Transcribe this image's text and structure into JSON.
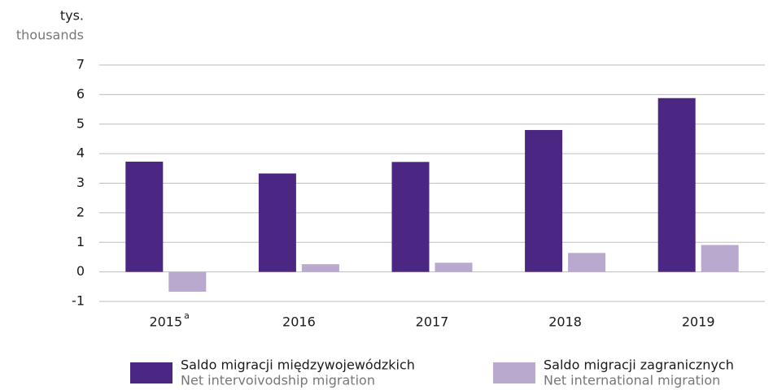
{
  "chart_data": {
    "type": "bar",
    "ylabel": [
      "tys.",
      "thousands"
    ],
    "categories": [
      "2015",
      "2016",
      "2017",
      "2018",
      "2019"
    ],
    "annotations": [
      "a"
    ],
    "series": [
      {
        "name": "Saldo migracji międzywojewódzkich",
        "name_en": "Net intervoivodship migration",
        "color": "#4b2683",
        "values": [
          3.73,
          3.33,
          3.72,
          4.8,
          5.88
        ]
      },
      {
        "name": "Saldo migracji zagranicznych",
        "name_en": "Net international migration",
        "color": "#b9a9cf",
        "values": [
          -0.67,
          0.26,
          0.31,
          0.64,
          0.91
        ]
      }
    ],
    "ylim": [
      -1,
      7
    ],
    "yticks": [
      -1,
      0,
      1,
      2,
      3,
      4,
      5,
      6,
      7
    ],
    "grid": true
  }
}
